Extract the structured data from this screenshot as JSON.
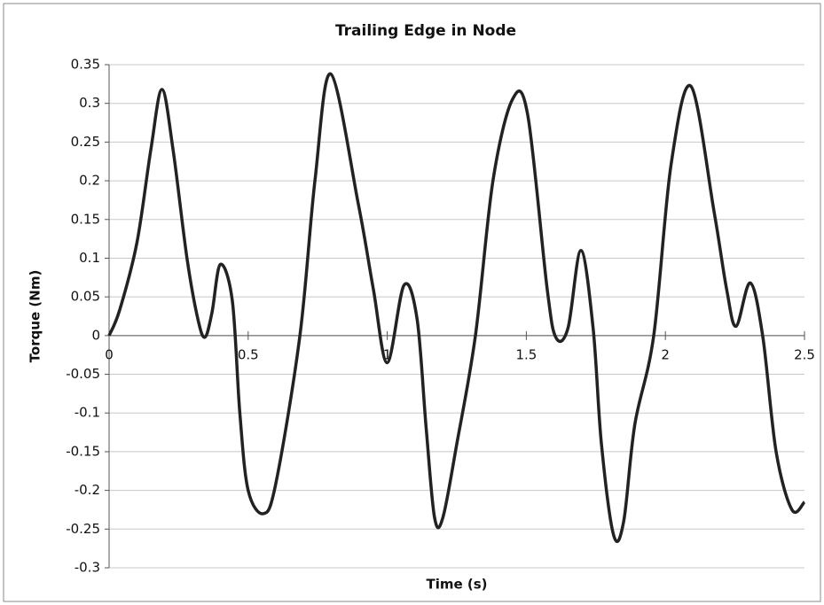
{
  "chart_data": {
    "type": "line",
    "title": "Trailing Edge in Node",
    "x_label": "Time (s)",
    "y_label": "Torque (Nm)",
    "xlim": [
      0,
      2.5
    ],
    "ylim": [
      -0.3,
      0.35
    ],
    "xticks": [
      0,
      0.5,
      1,
      1.5,
      2,
      2.5
    ],
    "yticks": [
      0.35,
      0.3,
      0.25,
      0.2,
      0.15,
      0.1,
      0.05,
      0,
      -0.05,
      -0.1,
      -0.15,
      -0.2,
      -0.25,
      -0.3
    ],
    "grid": true,
    "series": [
      {
        "color": "#222222",
        "x": [
          0,
          0.038,
          0.1,
          0.15,
          0.19,
          0.23,
          0.28,
          0.32,
          0.345,
          0.37,
          0.4,
          0.443,
          0.47,
          0.5,
          0.555,
          0.6,
          0.686,
          0.74,
          0.797,
          0.896,
          0.95,
          1.0,
          1.06,
          1.107,
          1.14,
          1.17,
          1.2,
          1.25,
          1.317,
          1.38,
          1.45,
          1.505,
          1.575,
          1.607,
          1.65,
          1.696,
          1.74,
          1.77,
          1.814,
          1.85,
          1.89,
          1.958,
          2.02,
          2.092,
          2.175,
          2.22,
          2.254,
          2.305,
          2.35,
          2.398,
          2.455,
          2.5
        ],
        "values": [
          0,
          0.033,
          0.12,
          0.24,
          0.318,
          0.24,
          0.1,
          0.02,
          -0.002,
          0.03,
          0.092,
          0.045,
          -0.1,
          -0.2,
          -0.23,
          -0.19,
          0,
          0.2,
          0.338,
          0.17,
          0.06,
          -0.035,
          0.065,
          0.022,
          -0.12,
          -0.235,
          -0.235,
          -0.14,
          0,
          0.2,
          0.305,
          0.285,
          0.06,
          -0.003,
          0.01,
          0.11,
          0.01,
          -0.14,
          -0.258,
          -0.24,
          -0.115,
          0,
          0.22,
          0.322,
          0.16,
          0.06,
          0.012,
          0.068,
          -0.001,
          -0.15,
          -0.225,
          -0.215
        ]
      }
    ]
  }
}
